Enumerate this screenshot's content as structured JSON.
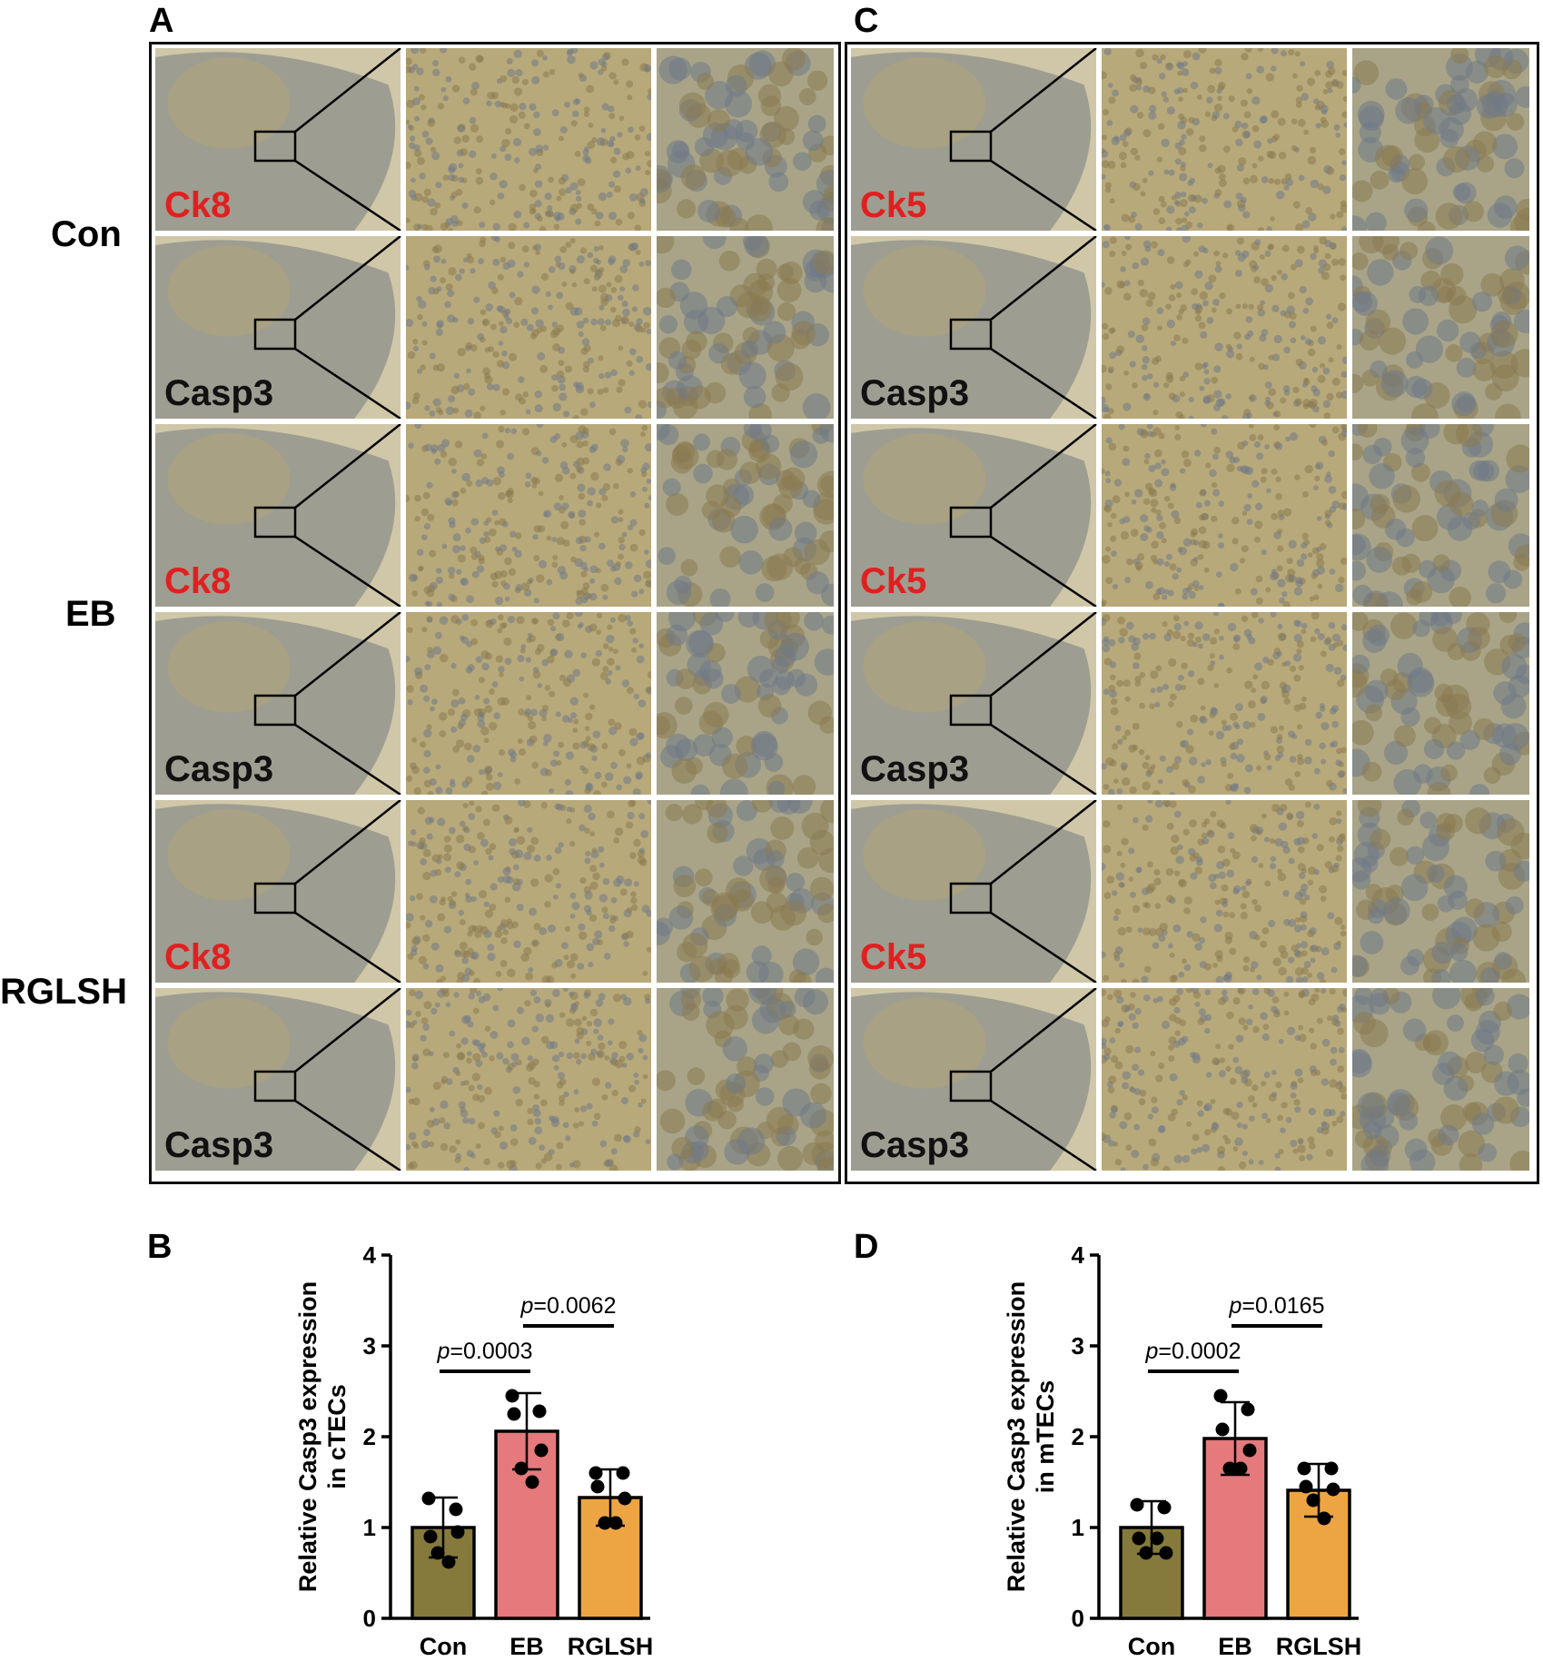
{
  "panels": {
    "A": "A",
    "B": "B",
    "C": "C",
    "D": "D"
  },
  "groups": [
    "Con",
    "EB",
    "RGLSH"
  ],
  "micrographs": {
    "A": {
      "rows": [
        {
          "stain": "Ck8",
          "stain_color": "#e02020"
        },
        {
          "stain": "Casp3",
          "stain_color": "#111111"
        },
        {
          "stain": "Ck8",
          "stain_color": "#e02020"
        },
        {
          "stain": "Casp3",
          "stain_color": "#111111"
        },
        {
          "stain": "Ck8",
          "stain_color": "#e02020"
        },
        {
          "stain": "Casp3",
          "stain_color": "#111111"
        }
      ]
    },
    "C": {
      "rows": [
        {
          "stain": "Ck5",
          "stain_color": "#e02020"
        },
        {
          "stain": "Casp3",
          "stain_color": "#111111"
        },
        {
          "stain": "Ck5",
          "stain_color": "#e02020"
        },
        {
          "stain": "Casp3",
          "stain_color": "#111111"
        },
        {
          "stain": "Ck5",
          "stain_color": "#e02020"
        },
        {
          "stain": "Casp3",
          "stain_color": "#111111"
        }
      ]
    }
  },
  "chart_data": [
    {
      "panel": "B",
      "type": "bar",
      "ylabel_line1": "Relative Casp3 expression",
      "ylabel_line2": "in cTECs",
      "categories": [
        "Con",
        "EB",
        "RGLSH"
      ],
      "values": [
        1.0,
        2.06,
        1.33
      ],
      "sd": [
        0.33,
        0.42,
        0.31
      ],
      "points": [
        [
          1.32,
          1.2,
          0.9,
          0.95,
          0.72,
          0.62
        ],
        [
          2.45,
          2.28,
          2.25,
          1.85,
          1.65,
          1.5
        ],
        [
          1.6,
          1.6,
          1.45,
          1.32,
          1.05,
          1.05
        ]
      ],
      "bar_colors": [
        "#857a3c",
        "#e5797c",
        "#eda544"
      ],
      "ylim": [
        0,
        4
      ],
      "yticks": [
        0,
        1,
        2,
        3,
        4
      ],
      "comparisons": [
        {
          "from": 0,
          "to": 1,
          "y": 2.72,
          "p_prefix": "p",
          "p_value": "=0.0003"
        },
        {
          "from": 1,
          "to": 2,
          "y": 3.22,
          "p_prefix": "p",
          "p_value": "=0.0062"
        }
      ]
    },
    {
      "panel": "D",
      "type": "bar",
      "ylabel_line1": "Relative Casp3 expression",
      "ylabel_line2": "in mTECs",
      "categories": [
        "Con",
        "EB",
        "RGLSH"
      ],
      "values": [
        1.0,
        1.98,
        1.41
      ],
      "sd": [
        0.29,
        0.4,
        0.29
      ],
      "points": [
        [
          1.25,
          1.22,
          0.88,
          0.72,
          0.72,
          0.88
        ],
        [
          2.45,
          2.3,
          2.08,
          1.85,
          1.65,
          1.65
        ],
        [
          1.65,
          1.65,
          1.45,
          1.42,
          1.3,
          1.1
        ]
      ],
      "bar_colors": [
        "#857a3c",
        "#e5797c",
        "#eda544"
      ],
      "ylim": [
        0,
        4
      ],
      "yticks": [
        0,
        1,
        2,
        3,
        4
      ],
      "comparisons": [
        {
          "from": 0,
          "to": 1,
          "y": 2.72,
          "p_prefix": "p",
          "p_value": "=0.0002"
        },
        {
          "from": 1,
          "to": 2,
          "y": 3.22,
          "p_prefix": "p",
          "p_value": "=0.0165"
        }
      ]
    }
  ]
}
